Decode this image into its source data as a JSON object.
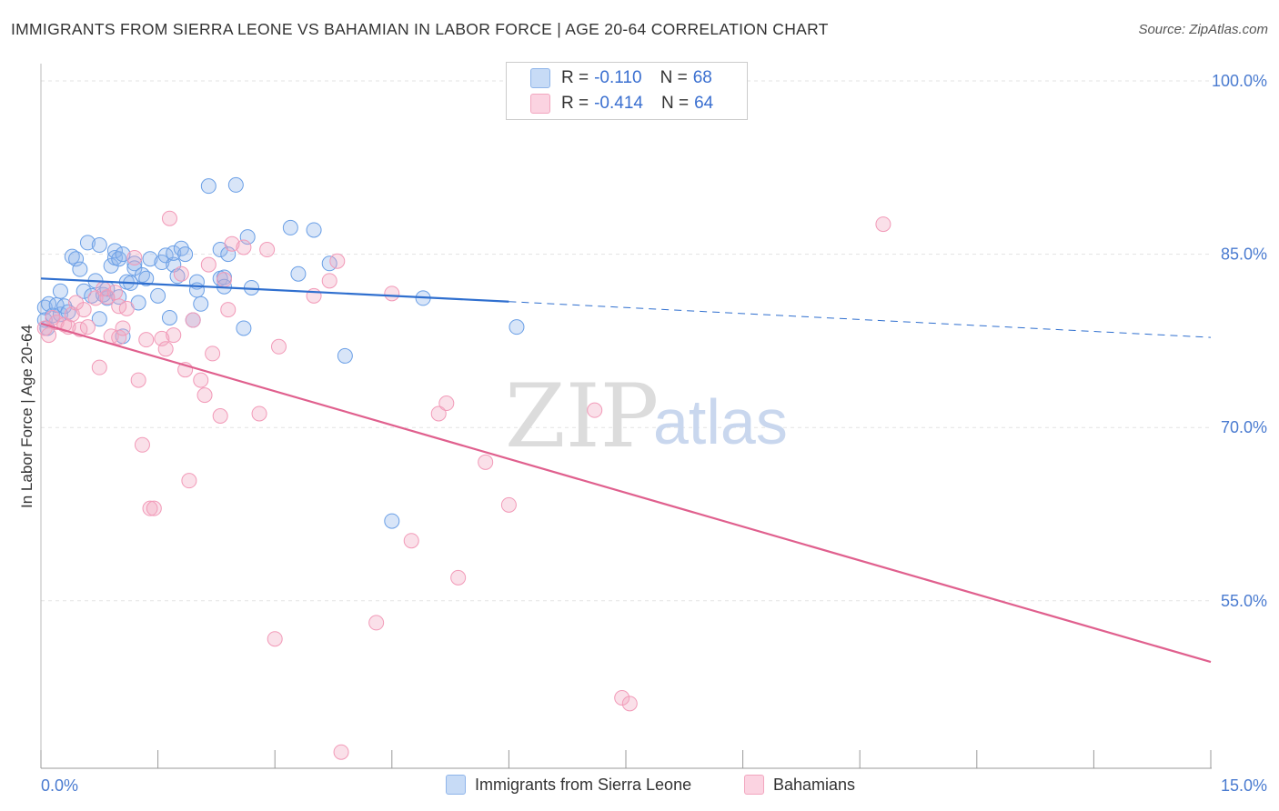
{
  "header": {
    "title": "IMMIGRANTS FROM SIERRA LEONE VS BAHAMIAN IN LABOR FORCE | AGE 20-64 CORRELATION CHART",
    "source": "Source: ZipAtlas.com"
  },
  "watermark": {
    "zip": "ZIP",
    "atlas": "atlas"
  },
  "legend": {
    "rows": [
      {
        "r_label": "R =",
        "r_value": "-0.110",
        "n_label": "N =",
        "n_value": "68",
        "color": "#8fb5ea"
      },
      {
        "r_label": "R =",
        "r_value": "-0.414",
        "n_label": "N =",
        "n_value": "64",
        "color": "#f2a6bf"
      }
    ]
  },
  "chart_data": {
    "type": "scatter",
    "title": "IMMIGRANTS FROM SIERRA LEONE VS BAHAMIAN IN LABOR FORCE | AGE 20-64 CORRELATION CHART",
    "xlabel": "",
    "ylabel": "In Labor Force | Age 20-64",
    "xlim": [
      0,
      15
    ],
    "ylim": [
      40.5,
      101.5
    ],
    "x_ticks": [
      "0.0%",
      "15.0%"
    ],
    "y_ticks": [
      {
        "value": 100,
        "label": "100.0%"
      },
      {
        "value": 85,
        "label": "85.0%"
      },
      {
        "value": 70,
        "label": "70.0%"
      },
      {
        "value": 55,
        "label": "55.0%"
      }
    ],
    "grid": true,
    "legend_position": "bottom-center",
    "series": [
      {
        "name": "Immigrants from Sierra Leone",
        "color": "#6a9fe6",
        "line_color": "#2f6fcf",
        "trend": {
          "x0": 0,
          "y0": 82.9,
          "x1": 6.0,
          "y1": 80.9,
          "dash_to_x": 15,
          "dash_to_y": 77.8
        },
        "points": [
          [
            0.05,
            80.4
          ],
          [
            0.05,
            79.3
          ],
          [
            0.08,
            78.6
          ],
          [
            0.1,
            80.7
          ],
          [
            0.15,
            79.7
          ],
          [
            0.2,
            80.6
          ],
          [
            0.25,
            81.8
          ],
          [
            0.25,
            79.8
          ],
          [
            0.3,
            80.5
          ],
          [
            0.35,
            80.0
          ],
          [
            0.4,
            84.8
          ],
          [
            0.45,
            84.6
          ],
          [
            0.5,
            83.7
          ],
          [
            0.55,
            81.8
          ],
          [
            0.6,
            86.0
          ],
          [
            0.65,
            81.4
          ],
          [
            0.7,
            82.7
          ],
          [
            0.75,
            79.4
          ],
          [
            0.75,
            85.8
          ],
          [
            0.8,
            81.5
          ],
          [
            0.85,
            81.2
          ],
          [
            0.85,
            82.0
          ],
          [
            0.9,
            84.0
          ],
          [
            0.95,
            84.7
          ],
          [
            0.95,
            85.3
          ],
          [
            1.0,
            81.3
          ],
          [
            1.0,
            84.6
          ],
          [
            1.05,
            77.9
          ],
          [
            1.05,
            85.0
          ],
          [
            1.1,
            82.6
          ],
          [
            1.15,
            82.5
          ],
          [
            1.2,
            84.2
          ],
          [
            1.2,
            83.8
          ],
          [
            1.25,
            80.8
          ],
          [
            1.3,
            83.2
          ],
          [
            1.35,
            82.9
          ],
          [
            1.4,
            84.6
          ],
          [
            1.5,
            81.4
          ],
          [
            1.55,
            84.3
          ],
          [
            1.6,
            84.9
          ],
          [
            1.65,
            79.5
          ],
          [
            1.7,
            84.1
          ],
          [
            1.7,
            85.1
          ],
          [
            1.75,
            83.1
          ],
          [
            1.8,
            85.5
          ],
          [
            1.85,
            85.0
          ],
          [
            1.95,
            79.3
          ],
          [
            2.0,
            82.6
          ],
          [
            2.0,
            81.9
          ],
          [
            2.05,
            80.7
          ],
          [
            2.15,
            90.9
          ],
          [
            2.3,
            85.4
          ],
          [
            2.3,
            82.9
          ],
          [
            2.4,
            85.0
          ],
          [
            2.5,
            91.0
          ],
          [
            2.35,
            83.0
          ],
          [
            2.35,
            82.2
          ],
          [
            2.6,
            78.6
          ],
          [
            2.65,
            86.5
          ],
          [
            2.7,
            82.1
          ],
          [
            3.2,
            87.3
          ],
          [
            3.3,
            83.3
          ],
          [
            3.5,
            87.1
          ],
          [
            3.7,
            84.2
          ],
          [
            3.9,
            76.2
          ],
          [
            4.5,
            61.9
          ],
          [
            4.9,
            81.2
          ],
          [
            6.1,
            78.7
          ]
        ]
      },
      {
        "name": "Bahamians",
        "color": "#f29ab8",
        "line_color": "#e0608e",
        "trend": {
          "x0": 0,
          "y0": 79.0,
          "x1": 15,
          "y1": 49.7
        },
        "points": [
          [
            0.05,
            78.6
          ],
          [
            0.1,
            78.0
          ],
          [
            0.15,
            79.5
          ],
          [
            0.2,
            79.1
          ],
          [
            0.3,
            78.9
          ],
          [
            0.35,
            78.7
          ],
          [
            0.4,
            79.8
          ],
          [
            0.45,
            80.8
          ],
          [
            0.5,
            78.5
          ],
          [
            0.55,
            80.2
          ],
          [
            0.6,
            78.7
          ],
          [
            0.7,
            81.2
          ],
          [
            0.75,
            75.2
          ],
          [
            0.8,
            82.0
          ],
          [
            0.85,
            81.3
          ],
          [
            0.9,
            77.9
          ],
          [
            0.95,
            81.7
          ],
          [
            1.0,
            80.5
          ],
          [
            1.0,
            77.8
          ],
          [
            1.05,
            78.6
          ],
          [
            1.1,
            80.3
          ],
          [
            1.2,
            84.7
          ],
          [
            1.25,
            74.1
          ],
          [
            1.3,
            68.5
          ],
          [
            1.35,
            77.6
          ],
          [
            1.4,
            63.0
          ],
          [
            1.45,
            63.0
          ],
          [
            1.55,
            77.7
          ],
          [
            1.6,
            76.8
          ],
          [
            1.65,
            88.1
          ],
          [
            1.7,
            78.0
          ],
          [
            1.8,
            83.3
          ],
          [
            1.85,
            75.0
          ],
          [
            1.9,
            65.4
          ],
          [
            1.95,
            79.3
          ],
          [
            2.05,
            74.1
          ],
          [
            2.1,
            72.8
          ],
          [
            2.15,
            84.1
          ],
          [
            2.2,
            76.4
          ],
          [
            2.3,
            71.0
          ],
          [
            2.35,
            82.8
          ],
          [
            2.4,
            80.2
          ],
          [
            2.45,
            85.9
          ],
          [
            2.6,
            85.6
          ],
          [
            2.8,
            71.2
          ],
          [
            2.9,
            85.4
          ],
          [
            3.0,
            51.7
          ],
          [
            3.05,
            77.0
          ],
          [
            3.5,
            81.4
          ],
          [
            3.7,
            82.7
          ],
          [
            3.8,
            84.4
          ],
          [
            3.85,
            41.9
          ],
          [
            4.3,
            53.1
          ],
          [
            4.5,
            81.6
          ],
          [
            4.75,
            60.2
          ],
          [
            5.1,
            71.2
          ],
          [
            5.2,
            72.1
          ],
          [
            5.35,
            57.0
          ],
          [
            5.7,
            67.0
          ],
          [
            6.0,
            63.3
          ],
          [
            7.1,
            71.5
          ],
          [
            7.45,
            46.6
          ],
          [
            7.55,
            46.1
          ],
          [
            10.8,
            87.6
          ]
        ]
      }
    ]
  }
}
